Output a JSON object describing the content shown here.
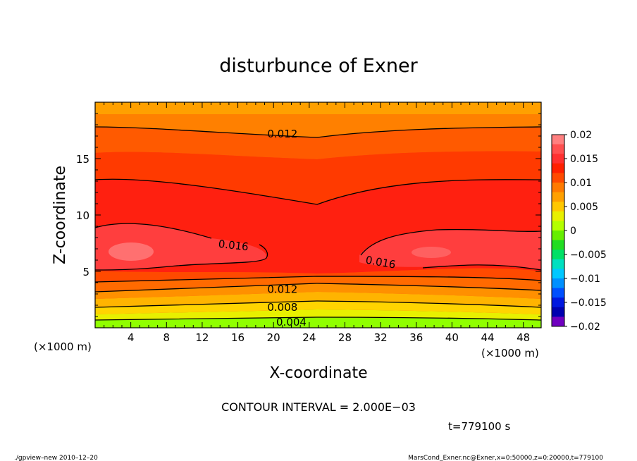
{
  "chart_data": {
    "type": "heatmap",
    "title": "disturbunce of Exner",
    "xlabel": "X-coordinate",
    "ylabel": "Z-coordinate",
    "x_unit_left": "(×1000 m)",
    "x_unit_right": "(×1000 m)",
    "xlim": [
      0,
      50
    ],
    "ylim": [
      0,
      20
    ],
    "x_ticks": [
      4,
      8,
      12,
      16,
      20,
      24,
      28,
      32,
      36,
      40,
      44,
      48
    ],
    "y_ticks": [
      5,
      10,
      15
    ],
    "contour_labels": [
      {
        "text": "0.012",
        "x": 21,
        "z": 17.2
      },
      {
        "text": "0.016",
        "x": 15.5,
        "z": 7.3
      },
      {
        "text": "0.016",
        "x": 32,
        "z": 5.8
      },
      {
        "text": "0.012",
        "x": 21,
        "z": 3.4
      },
      {
        "text": "0.008",
        "x": 21,
        "z": 1.8
      },
      {
        "text": "0.004",
        "x": 22,
        "z": 0.5
      }
    ],
    "colorbar": {
      "labels": [
        "0.02",
        "0.015",
        "0.01",
        "0.005",
        "0",
        "−0.005",
        "−0.01",
        "−0.015",
        "−0.02"
      ],
      "levels": [
        0.02,
        0.015,
        0.01,
        0.005,
        0,
        -0.005,
        -0.01,
        -0.015,
        -0.02
      ],
      "colors_top_to_bottom": [
        "#ff8080",
        "#ff5050",
        "#ff3030",
        "#ff2000",
        "#ff4a00",
        "#ff7a00",
        "#ffa000",
        "#ffc800",
        "#e8f000",
        "#b4ff00",
        "#66ee00",
        "#22dd22",
        "#00e066",
        "#00e0c0",
        "#00c8ff",
        "#0090ff",
        "#0050ff",
        "#0018e0",
        "#0000b0",
        "#7000c0"
      ]
    },
    "contour_interval_text": "CONTOUR INTERVAL = 2.000E−03",
    "time_text": "t=779100 s",
    "footer_left": "./gpview–new  2010–12–20",
    "footer_right": "MarsCond_Exner.nc@Exner,x=0:50000,z=0:20000,t=779100"
  }
}
